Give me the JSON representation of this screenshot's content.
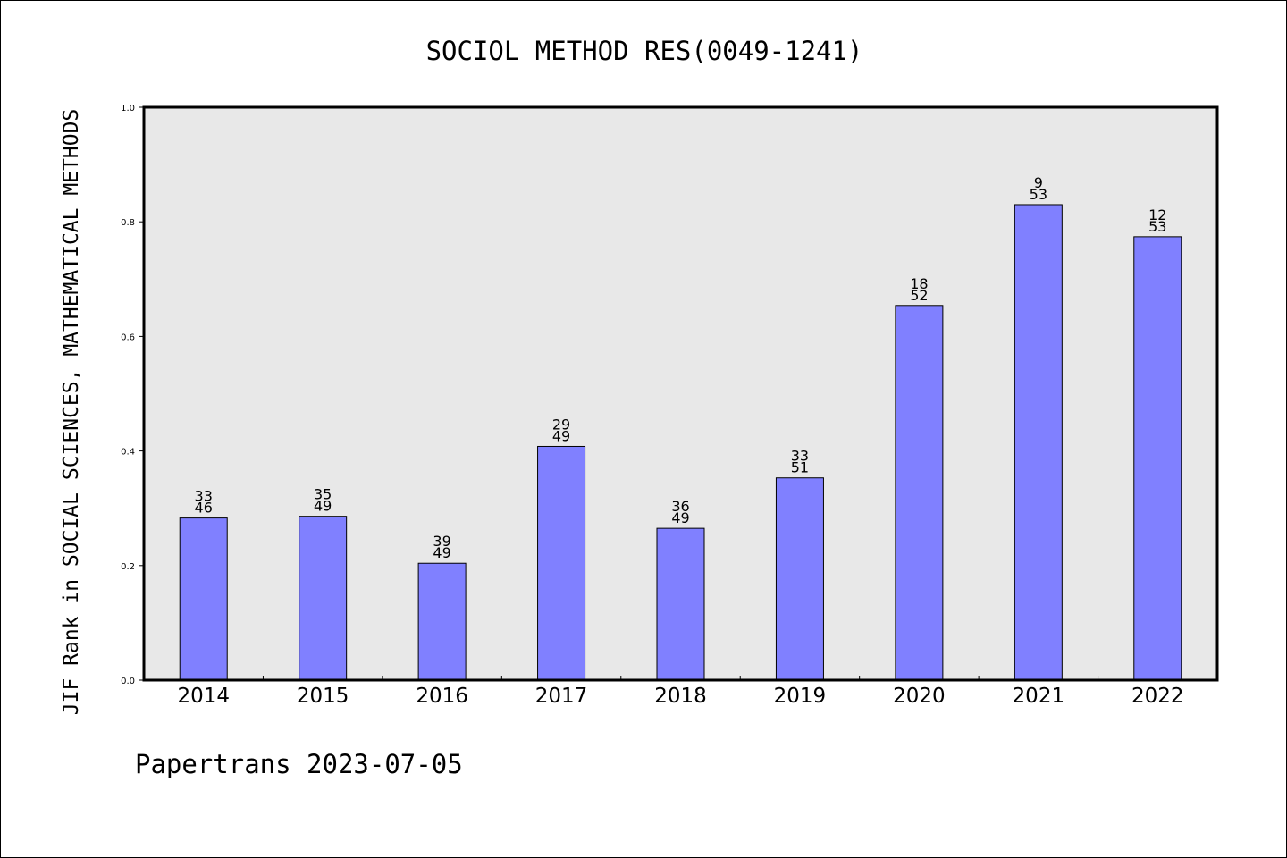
{
  "chart_data": {
    "type": "bar",
    "title": "SOCIOL METHOD RES(0049-1241)",
    "xlabel": "",
    "ylabel": "JIF Rank in SOCIAL SCIENCES, MATHEMATICAL METHODS",
    "ylim": [
      0,
      1.0
    ],
    "yticks": [
      "0.0",
      "0.2",
      "0.4",
      "0.6",
      "0.8",
      "1.0"
    ],
    "categories": [
      "2014",
      "2015",
      "2016",
      "2017",
      "2018",
      "2019",
      "2020",
      "2021",
      "2022"
    ],
    "values": [
      0.283,
      0.286,
      0.204,
      0.408,
      0.265,
      0.353,
      0.654,
      0.83,
      0.774
    ],
    "ranks": [
      "33",
      "35",
      "39",
      "29",
      "36",
      "33",
      "18",
      "9",
      "12"
    ],
    "totals": [
      "46",
      "49",
      "49",
      "49",
      "49",
      "51",
      "52",
      "53",
      "53"
    ],
    "grid": false,
    "legend": "none",
    "colors": {
      "bar": "#8080ff",
      "plot_background": "#e8e8e8",
      "axis": "#000000"
    }
  },
  "footer": {
    "watermark": "Papertrans 2023-07-05"
  }
}
